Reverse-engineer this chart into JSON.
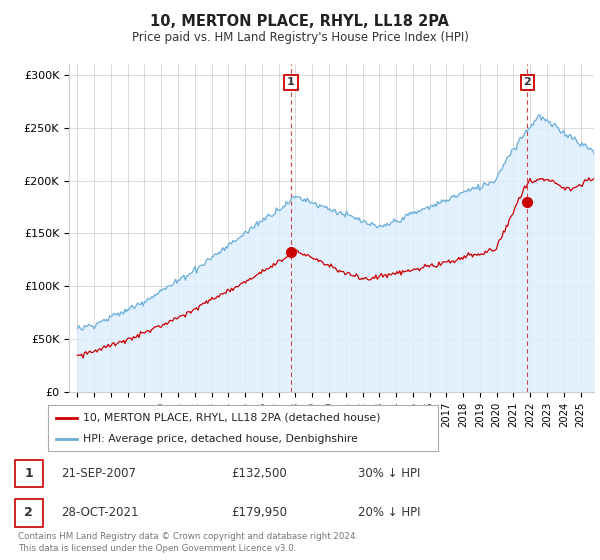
{
  "title": "10, MERTON PLACE, RHYL, LL18 2PA",
  "subtitle": "Price paid vs. HM Land Registry's House Price Index (HPI)",
  "ylim": [
    0,
    310000
  ],
  "yticks": [
    0,
    50000,
    100000,
    150000,
    200000,
    250000,
    300000
  ],
  "ytick_labels": [
    "£0",
    "£50K",
    "£100K",
    "£150K",
    "£200K",
    "£250K",
    "£300K"
  ],
  "sale1_date_x": 2007.73,
  "sale1_price": 132500,
  "sale1_label": "1",
  "sale2_date_x": 2021.83,
  "sale2_price": 179950,
  "sale2_label": "2",
  "hpi_color": "#6baed6",
  "hpi_fill_color": "#ddeeff",
  "sale_color": "#cc0000",
  "vline_color": "#cc4444",
  "background_color": "#ffffff",
  "grid_color": "#cccccc",
  "legend_entry1": "10, MERTON PLACE, RHYL, LL18 2PA (detached house)",
  "legend_entry2": "HPI: Average price, detached house, Denbighshire",
  "table_row1": [
    "1",
    "21-SEP-2007",
    "£132,500",
    "30% ↓ HPI"
  ],
  "table_row2": [
    "2",
    "28-OCT-2021",
    "£179,950",
    "20% ↓ HPI"
  ],
  "footer": "Contains HM Land Registry data © Crown copyright and database right 2024.\nThis data is licensed under the Open Government Licence v3.0.",
  "xmin": 1994.5,
  "xmax": 2025.8
}
